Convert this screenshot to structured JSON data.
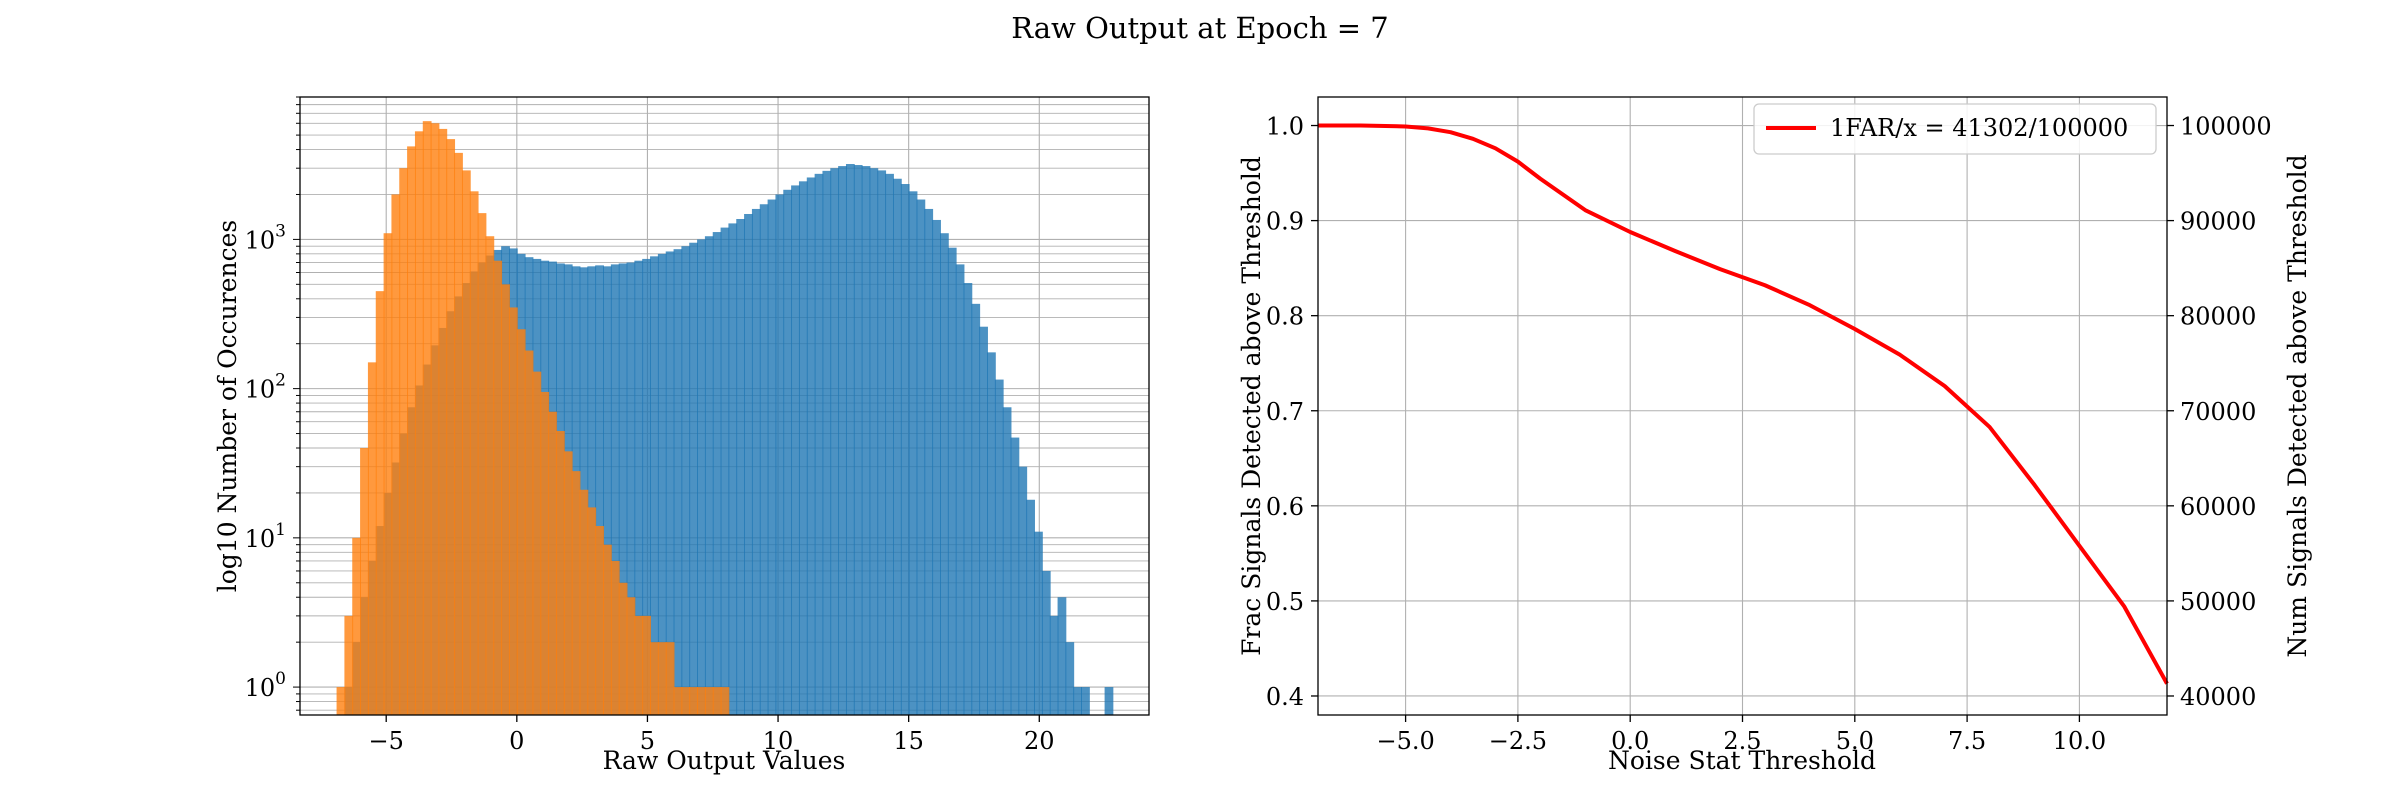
{
  "figure": {
    "title": "Raw Output at Epoch = 7"
  },
  "chart_data": [
    {
      "type": "histogram",
      "xlabel": "Raw Output Values",
      "ylabel": "log10 Number of Occurences",
      "yscale": "log",
      "xlim": [
        -8.3,
        24.2
      ],
      "ylim": [
        0.65,
        9000
      ],
      "xticks": [
        -5,
        0,
        5,
        10,
        15,
        20
      ],
      "yticks": [
        {
          "base": "10",
          "exp": "0",
          "value": 1
        },
        {
          "base": "10",
          "exp": "1",
          "value": 10
        },
        {
          "base": "10",
          "exp": "2",
          "value": 100
        },
        {
          "base": "10",
          "exp": "3",
          "value": 1000
        }
      ],
      "grid": true,
      "bin_width": 0.32,
      "series": [
        {
          "color": "#1f77b4",
          "alpha": 0.8,
          "bins": [
            [
              -6.6,
              1
            ],
            [
              -6.3,
              2
            ],
            [
              -6.0,
              4
            ],
            [
              -5.7,
              7
            ],
            [
              -5.4,
              12
            ],
            [
              -5.1,
              20
            ],
            [
              -4.8,
              32
            ],
            [
              -4.5,
              50
            ],
            [
              -4.2,
              75
            ],
            [
              -3.9,
              105
            ],
            [
              -3.6,
              145
            ],
            [
              -3.3,
              195
            ],
            [
              -3.0,
              255
            ],
            [
              -2.7,
              330
            ],
            [
              -2.4,
              415
            ],
            [
              -2.1,
              510
            ],
            [
              -1.8,
              610
            ],
            [
              -1.5,
              700
            ],
            [
              -1.2,
              780
            ],
            [
              -0.9,
              850
            ],
            [
              -0.6,
              900
            ],
            [
              -0.3,
              870
            ],
            [
              0.0,
              800
            ],
            [
              0.3,
              760
            ],
            [
              0.6,
              740
            ],
            [
              0.9,
              720
            ],
            [
              1.2,
              710
            ],
            [
              1.5,
              690
            ],
            [
              1.8,
              680
            ],
            [
              2.1,
              660
            ],
            [
              2.4,
              650
            ],
            [
              2.7,
              660
            ],
            [
              3.0,
              670
            ],
            [
              3.3,
              660
            ],
            [
              3.6,
              680
            ],
            [
              3.9,
              690
            ],
            [
              4.2,
              700
            ],
            [
              4.5,
              720
            ],
            [
              4.8,
              740
            ],
            [
              5.1,
              770
            ],
            [
              5.4,
              800
            ],
            [
              5.7,
              830
            ],
            [
              6.0,
              860
            ],
            [
              6.3,
              900
            ],
            [
              6.6,
              950
            ],
            [
              6.9,
              1000
            ],
            [
              7.2,
              1050
            ],
            [
              7.5,
              1120
            ],
            [
              7.8,
              1200
            ],
            [
              8.1,
              1280
            ],
            [
              8.4,
              1370
            ],
            [
              8.7,
              1480
            ],
            [
              9.0,
              1600
            ],
            [
              9.3,
              1720
            ],
            [
              9.6,
              1850
            ],
            [
              9.9,
              2000
            ],
            [
              10.2,
              2150
            ],
            [
              10.5,
              2300
            ],
            [
              10.8,
              2450
            ],
            [
              11.1,
              2600
            ],
            [
              11.4,
              2750
            ],
            [
              11.7,
              2880
            ],
            [
              12.0,
              3000
            ],
            [
              12.3,
              3100
            ],
            [
              12.6,
              3200
            ],
            [
              12.9,
              3150
            ],
            [
              13.2,
              3100
            ],
            [
              13.5,
              3000
            ],
            [
              13.8,
              2900
            ],
            [
              14.1,
              2750
            ],
            [
              14.4,
              2550
            ],
            [
              14.7,
              2350
            ],
            [
              15.0,
              2100
            ],
            [
              15.3,
              1850
            ],
            [
              15.6,
              1600
            ],
            [
              15.9,
              1350
            ],
            [
              16.2,
              1100
            ],
            [
              16.5,
              880
            ],
            [
              16.8,
              680
            ],
            [
              17.1,
              510
            ],
            [
              17.4,
              370
            ],
            [
              17.7,
              260
            ],
            [
              18.0,
              175
            ],
            [
              18.3,
              115
            ],
            [
              18.6,
              75
            ],
            [
              18.9,
              47
            ],
            [
              19.2,
              30
            ],
            [
              19.5,
              18
            ],
            [
              19.8,
              11
            ],
            [
              20.1,
              6
            ],
            [
              20.4,
              3
            ],
            [
              20.7,
              4
            ],
            [
              21.0,
              2
            ],
            [
              21.3,
              1
            ],
            [
              21.6,
              1
            ],
            [
              22.5,
              1
            ]
          ]
        },
        {
          "color": "#ff7f0e",
          "alpha": 0.8,
          "bins": [
            [
              -6.9,
              1
            ],
            [
              -6.6,
              3
            ],
            [
              -6.3,
              10
            ],
            [
              -6.0,
              40
            ],
            [
              -5.7,
              150
            ],
            [
              -5.4,
              450
            ],
            [
              -5.1,
              1100
            ],
            [
              -4.8,
              2000
            ],
            [
              -4.5,
              3000
            ],
            [
              -4.2,
              4200
            ],
            [
              -3.9,
              5300
            ],
            [
              -3.6,
              6200
            ],
            [
              -3.3,
              6000
            ],
            [
              -3.0,
              5500
            ],
            [
              -2.7,
              4700
            ],
            [
              -2.4,
              3800
            ],
            [
              -2.1,
              2900
            ],
            [
              -1.8,
              2100
            ],
            [
              -1.5,
              1500
            ],
            [
              -1.2,
              1050
            ],
            [
              -0.9,
              720
            ],
            [
              -0.6,
              500
            ],
            [
              -0.3,
              350
            ],
            [
              0.0,
              250
            ],
            [
              0.3,
              180
            ],
            [
              0.6,
              130
            ],
            [
              0.9,
              95
            ],
            [
              1.2,
              70
            ],
            [
              1.5,
              52
            ],
            [
              1.8,
              38
            ],
            [
              2.1,
              28
            ],
            [
              2.4,
              21
            ],
            [
              2.7,
              16
            ],
            [
              3.0,
              12
            ],
            [
              3.3,
              9
            ],
            [
              3.6,
              7
            ],
            [
              3.9,
              5
            ],
            [
              4.2,
              4
            ],
            [
              4.5,
              3
            ],
            [
              4.8,
              3
            ],
            [
              5.1,
              2
            ],
            [
              5.4,
              2
            ],
            [
              5.7,
              2
            ],
            [
              6.0,
              1
            ],
            [
              6.3,
              1
            ],
            [
              6.6,
              1
            ],
            [
              6.9,
              1
            ],
            [
              7.2,
              1
            ],
            [
              7.5,
              1
            ],
            [
              7.8,
              1
            ]
          ]
        }
      ]
    },
    {
      "type": "line",
      "xlabel": "Noise Stat Threshold",
      "ylabel": "Frac Signals Detected above Threshold",
      "ylabel_right": "Num Signals Detected above Threshold",
      "xlim": [
        -6.95,
        11.95
      ],
      "ylim": [
        0.38,
        1.03
      ],
      "ylim_right": [
        38000,
        103000
      ],
      "xticks": [
        "-5.0",
        "-2.5",
        "0.0",
        "2.5",
        "5.0",
        "7.5",
        "10.0"
      ],
      "yticks": [
        "0.4",
        "0.5",
        "0.6",
        "0.7",
        "0.8",
        "0.9",
        "1.0"
      ],
      "yticks_right": [
        "40000",
        "50000",
        "60000",
        "70000",
        "80000",
        "90000",
        "100000"
      ],
      "grid": true,
      "legend_position": "top-right",
      "series": [
        {
          "name": "1FAR/x = 41302/100000",
          "color": "#ff0000",
          "x": [
            -6.95,
            -6.0,
            -5.0,
            -4.5,
            -4.0,
            -3.5,
            -3.0,
            -2.5,
            -2.0,
            -1.0,
            0.0,
            1.0,
            2.0,
            3.0,
            4.0,
            5.0,
            6.0,
            7.0,
            8.0,
            9.0,
            10.0,
            11.0,
            11.95
          ],
          "y": [
            1.0,
            1.0,
            0.999,
            0.997,
            0.993,
            0.986,
            0.976,
            0.962,
            0.944,
            0.911,
            0.888,
            0.868,
            0.849,
            0.832,
            0.811,
            0.786,
            0.759,
            0.726,
            0.683,
            0.622,
            0.558,
            0.494,
            0.413
          ]
        }
      ]
    }
  ]
}
